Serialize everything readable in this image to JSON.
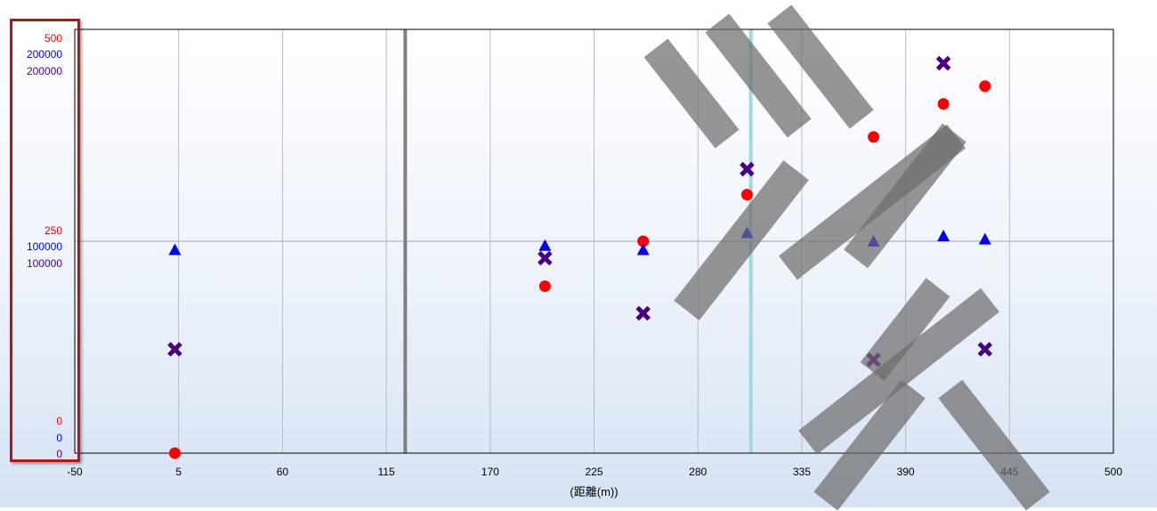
{
  "chart_data": {
    "type": "scatter",
    "xlabel": "(距離(m))",
    "xlim": [
      -50,
      500
    ],
    "x_ticks": [
      "-50",
      "5",
      "60",
      "115",
      "170",
      "225",
      "280",
      "335",
      "390",
      "445",
      "500"
    ],
    "x_tick_values": [
      -50,
      5,
      60,
      115,
      170,
      225,
      280,
      335,
      390,
      445,
      500
    ],
    "grid": true,
    "y_axes": [
      {
        "color": "#ff0000",
        "min": 0,
        "max": 500,
        "ticks": [
          "0",
          "250",
          "500"
        ]
      },
      {
        "color": "#0000ff",
        "min": 0,
        "max": 200000,
        "ticks": [
          "0",
          "100000",
          "200000"
        ]
      },
      {
        "color": "#4b0082",
        "min": 0,
        "max": 200000,
        "ticks": [
          "0",
          "100000",
          "200000"
        ]
      }
    ],
    "series": [
      {
        "marker": "circle",
        "color": "#ff0000",
        "axis": 0,
        "points": [
          [
            3,
            0
          ],
          [
            199,
            197
          ],
          [
            251,
            250
          ],
          [
            306,
            305
          ],
          [
            373,
            373
          ],
          [
            410,
            412
          ],
          [
            432,
            433
          ]
        ]
      },
      {
        "marker": "triangle",
        "color": "#0000ff",
        "axis": 1,
        "points": [
          [
            3,
            96000
          ],
          [
            199,
            98000
          ],
          [
            251,
            96000
          ],
          [
            306,
            104000
          ],
          [
            373,
            100000
          ],
          [
            410,
            102500
          ],
          [
            432,
            101000
          ]
        ]
      },
      {
        "marker": "cross",
        "color": "#4b0082",
        "axis": 2,
        "points": [
          [
            3,
            49000
          ],
          [
            199,
            92000
          ],
          [
            251,
            66000
          ],
          [
            306,
            134000
          ],
          [
            373,
            44000
          ],
          [
            410,
            184000
          ],
          [
            432,
            49000
          ]
        ]
      }
    ],
    "vertical_lines": [
      {
        "x": 125,
        "color": "#808080"
      },
      {
        "x": 308,
        "color": "#9fd8e0"
      }
    ]
  }
}
